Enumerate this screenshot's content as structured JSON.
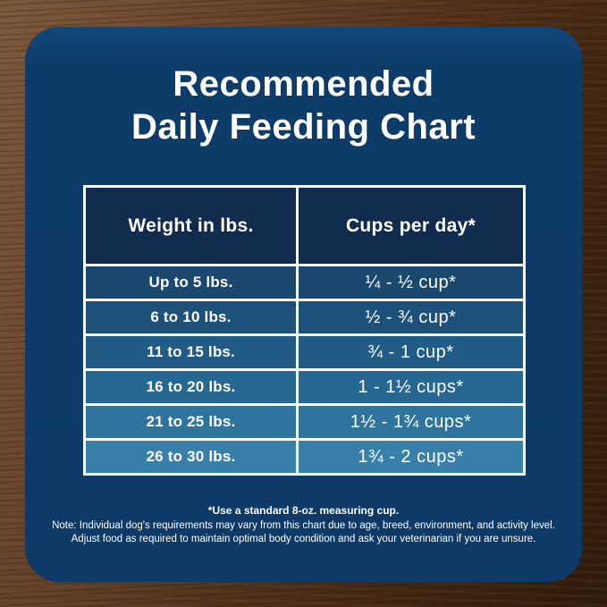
{
  "title": {
    "line1": "Recommended",
    "line2": "Daily Feeding Chart"
  },
  "chart_data": {
    "type": "table",
    "title": "Recommended Daily Feeding Chart",
    "columns": [
      "Weight in lbs.",
      "Cups per day*"
    ],
    "rows": [
      [
        "Up to 5 lbs.",
        "¼ - ½ cup*"
      ],
      [
        "6 to 10 lbs.",
        "½ - ¾ cup*"
      ],
      [
        "11 to 15 lbs.",
        "¾ - 1 cup*"
      ],
      [
        "16 to 20 lbs.",
        "1 - 1½ cups*"
      ],
      [
        "21 to 25 lbs.",
        "1½ - 1¾ cups*"
      ],
      [
        "26 to 30 lbs.",
        "1¾ - 2 cups*"
      ]
    ]
  },
  "notes": {
    "line1": "*Use a standard 8-oz. measuring cup.",
    "line2": "Note: Individual dog's requirements may vary from this chart due to age, breed, environment, and activity level.",
    "line3": "Adjust food as required to maintain optimal body condition and ask your veterinarian if you are unsure."
  },
  "colors": {
    "card_background": "#0e3c69",
    "header_cell_background": "#122c50",
    "row_backgrounds": [
      "#1a486e",
      "#1d517a",
      "#225c86",
      "#276892",
      "#2f749e",
      "#3880a9"
    ],
    "table_border": "#ffffff",
    "text": "#ffffff",
    "wood_light": "#7d593c",
    "wood_dark": "#2f1b0c"
  }
}
